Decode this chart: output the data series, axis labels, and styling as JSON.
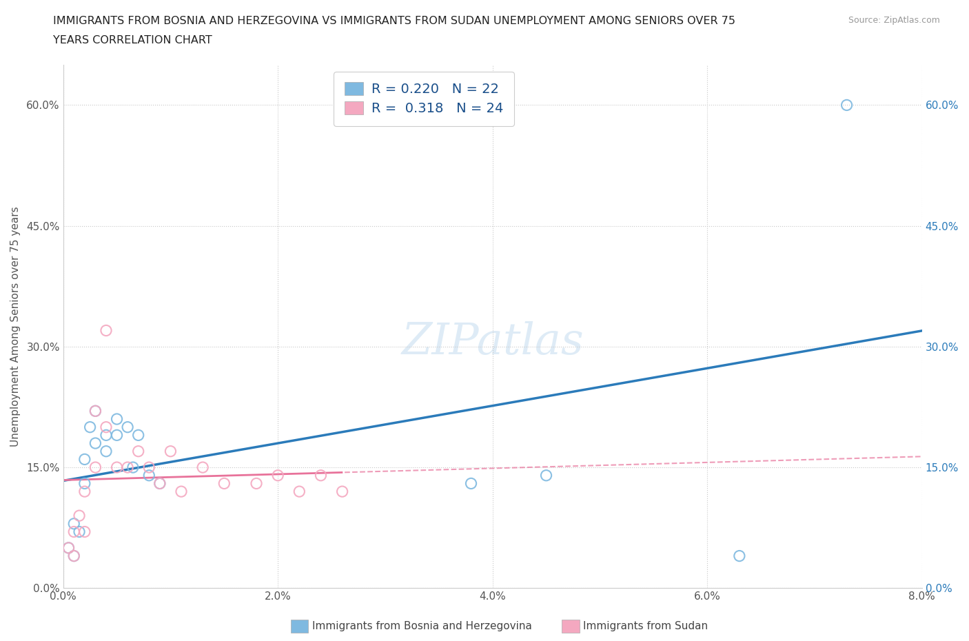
{
  "title_line1": "IMMIGRANTS FROM BOSNIA AND HERZEGOVINA VS IMMIGRANTS FROM SUDAN UNEMPLOYMENT AMONG SENIORS OVER 75",
  "title_line2": "YEARS CORRELATION CHART",
  "source": "Source: ZipAtlas.com",
  "ylabel": "Unemployment Among Seniors over 75 years",
  "xlim": [
    0.0,
    0.08
  ],
  "ylim": [
    0.0,
    0.65
  ],
  "xticks": [
    0.0,
    0.02,
    0.04,
    0.06,
    0.08
  ],
  "yticks": [
    0.0,
    0.15,
    0.3,
    0.45,
    0.6
  ],
  "ytick_labels_left": [
    "0.0%",
    "15.0%",
    "30.0%",
    "45.0%",
    "60.0%"
  ],
  "ytick_labels_right": [
    "0.0%",
    "15.0%",
    "30.0%",
    "45.0%",
    "60.0%"
  ],
  "xtick_labels": [
    "0.0%",
    "2.0%",
    "4.0%",
    "6.0%",
    "8.0%"
  ],
  "r_bosnia": 0.22,
  "n_bosnia": 22,
  "r_sudan": 0.318,
  "n_sudan": 24,
  "color_bosnia": "#7fb9e0",
  "color_sudan": "#f4a8c0",
  "trendline_color_bosnia": "#2b7bba",
  "trendline_color_sudan": "#e8729a",
  "bosnia_x": [
    0.0005,
    0.001,
    0.001,
    0.0015,
    0.002,
    0.002,
    0.0025,
    0.003,
    0.003,
    0.004,
    0.004,
    0.005,
    0.005,
    0.006,
    0.0065,
    0.007,
    0.008,
    0.009,
    0.038,
    0.045,
    0.063,
    0.073
  ],
  "bosnia_y": [
    0.05,
    0.04,
    0.08,
    0.07,
    0.13,
    0.16,
    0.2,
    0.22,
    0.18,
    0.17,
    0.19,
    0.19,
    0.21,
    0.2,
    0.15,
    0.19,
    0.14,
    0.13,
    0.13,
    0.14,
    0.04,
    0.6
  ],
  "sudan_x": [
    0.0005,
    0.001,
    0.001,
    0.0015,
    0.002,
    0.002,
    0.003,
    0.003,
    0.004,
    0.004,
    0.005,
    0.006,
    0.007,
    0.008,
    0.009,
    0.01,
    0.011,
    0.013,
    0.015,
    0.018,
    0.02,
    0.022,
    0.024,
    0.026
  ],
  "sudan_y": [
    0.05,
    0.04,
    0.07,
    0.09,
    0.07,
    0.12,
    0.15,
    0.22,
    0.2,
    0.32,
    0.15,
    0.15,
    0.17,
    0.15,
    0.13,
    0.17,
    0.12,
    0.15,
    0.13,
    0.13,
    0.14,
    0.12,
    0.14,
    0.12
  ],
  "legend_label_bosnia": "Immigrants from Bosnia and Herzegovina",
  "legend_label_sudan": "Immigrants from Sudan",
  "watermark_color": "#c8dff0",
  "watermark_alpha": 0.6
}
